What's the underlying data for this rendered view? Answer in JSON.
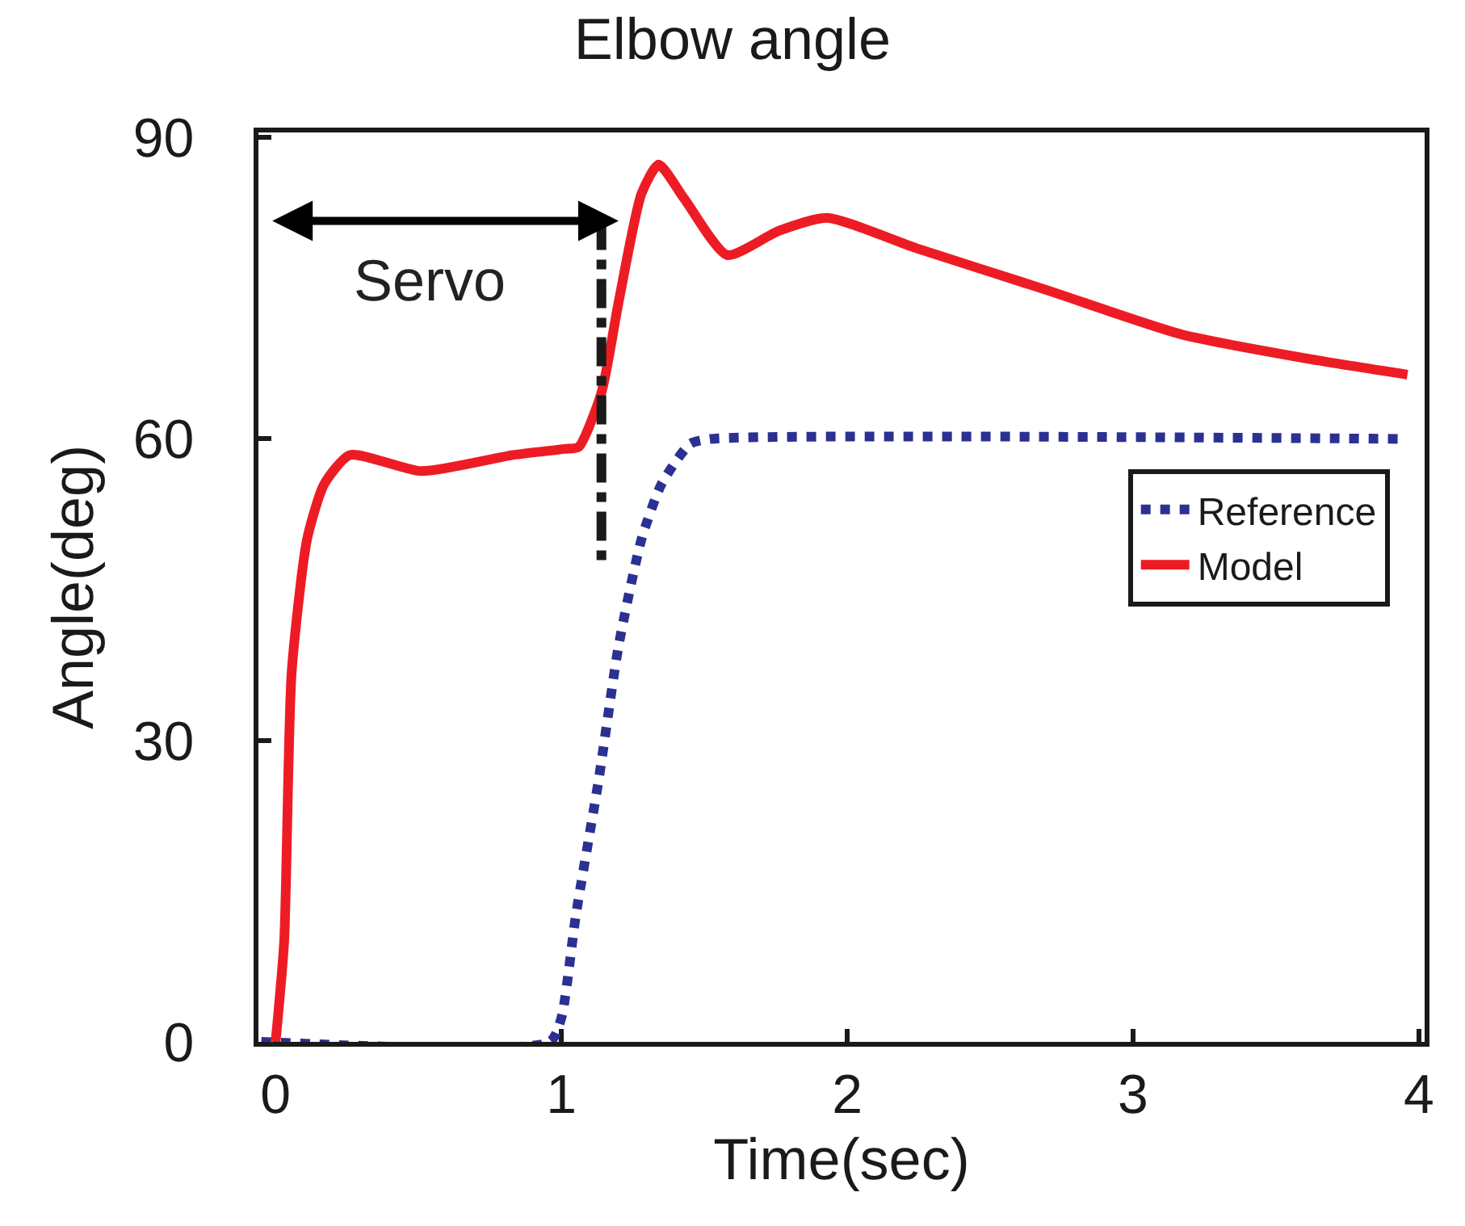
{
  "chart_data": {
    "type": "line",
    "title": "Elbow angle",
    "xlabel": "Time(sec)",
    "ylabel": "Angle(deg)",
    "xlim": [
      -0.06,
      4.02
    ],
    "xticks": [
      0,
      1,
      2,
      3,
      4
    ],
    "ylim": [
      0,
      90.5
    ],
    "yticks": [
      0,
      30,
      60,
      90
    ],
    "grid": false,
    "legend": "right",
    "annotations": [
      "Servo"
    ],
    "series": [
      {
        "name": "Reference",
        "color": "#2b3192",
        "line_style": "dotted",
        "x": [
          -0.05,
          0.96,
          1.0,
          1.05,
          1.13,
          1.2,
          1.28,
          1.35,
          1.45,
          1.52,
          3.96
        ],
        "values": [
          0,
          0,
          2.4,
          12.5,
          26,
          39.4,
          50,
          55.5,
          59.5,
          60,
          60
        ]
      },
      {
        "name": "Model",
        "color": "#ed1c24",
        "line_style": "solid",
        "x": [
          0,
          0.03,
          0.056,
          0.11,
          0.17,
          0.26,
          0.51,
          0.83,
          1.01,
          1.06,
          1.14,
          1.2,
          1.28,
          1.34,
          1.43,
          1.58,
          1.76,
          1.93,
          2.24,
          2.7,
          3.17,
          3.65,
          3.96
        ],
        "values": [
          0,
          10,
          36.7,
          50,
          55.5,
          58.4,
          56.8,
          58.4,
          59,
          59.2,
          64.6,
          73.6,
          84.4,
          87.3,
          83.9,
          78.3,
          80.7,
          82,
          79,
          74.8,
          70.4,
          67.8,
          66.4
        ]
      },
      {
        "color": "#1a1a1a",
        "line_style": "dashed",
        "x": [
          1.14,
          1.14
        ],
        "values": [
          81.7,
          47
        ]
      }
    ]
  }
}
